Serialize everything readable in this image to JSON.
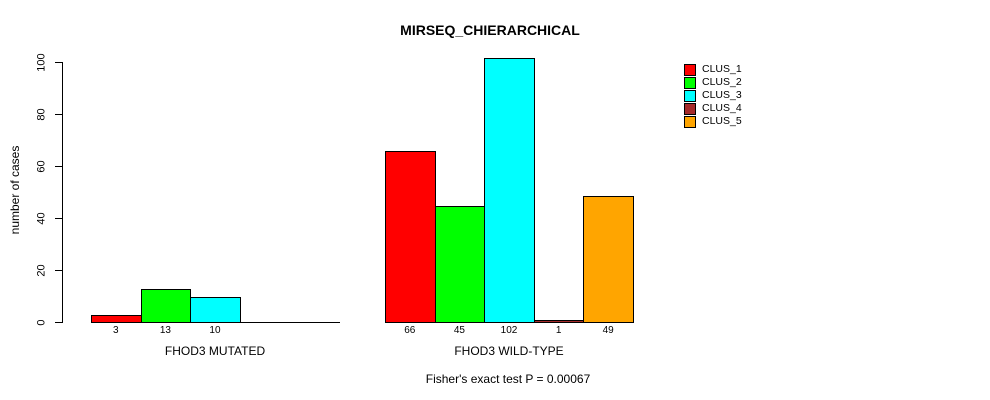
{
  "chart_data": {
    "type": "bar",
    "title": "MIRSEQ_CHIERARCHICAL",
    "ylabel": "number of cases",
    "xlabel": "",
    "ylim": [
      0,
      100
    ],
    "yticks": [
      0,
      20,
      40,
      60,
      80,
      100
    ],
    "grid": false,
    "legend_position": "right-outside",
    "groups": [
      "FHOD3 MUTATED",
      "FHOD3 WILD-TYPE"
    ],
    "series": [
      {
        "name": "CLUS_1",
        "color": "#FF0000",
        "values": [
          3,
          66
        ]
      },
      {
        "name": "CLUS_2",
        "color": "#00FF00",
        "values": [
          13,
          45
        ]
      },
      {
        "name": "CLUS_3",
        "color": "#00FFFF",
        "values": [
          10,
          102
        ]
      },
      {
        "name": "CLUS_4",
        "color": "#A52A2A",
        "values": [
          0,
          1
        ]
      },
      {
        "name": "CLUS_5",
        "color": "#FFA500",
        "values": [
          0,
          49
        ]
      }
    ],
    "bar_value_labels_shown": true,
    "annotation": "Fisher's exact test P = 0.00067"
  }
}
